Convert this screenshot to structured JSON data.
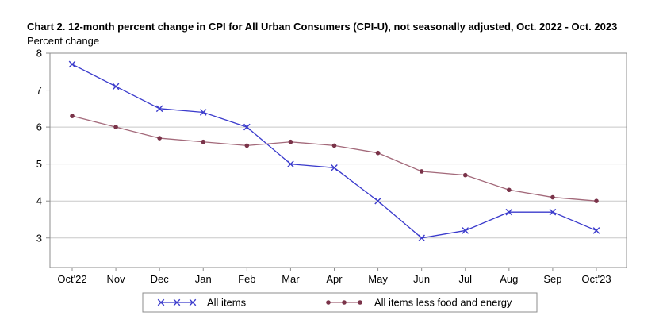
{
  "chart_data": {
    "type": "line",
    "title": "Chart 2. 12-month percent change in CPI for All Urban Consumers (CPI-U), not seasonally adjusted, Oct. 2022 - Oct. 2023",
    "ylabel": "Percent change",
    "xlabel": "",
    "categories": [
      "Oct'22",
      "Nov",
      "Dec",
      "Jan",
      "Feb",
      "Mar",
      "Apr",
      "May",
      "Jun",
      "Jul",
      "Aug",
      "Sep",
      "Oct'23"
    ],
    "ylim": [
      2.2,
      8
    ],
    "yticks": [
      3,
      4,
      5,
      6,
      7,
      8
    ],
    "grid": true,
    "legend": "bottom",
    "series": [
      {
        "name": "All items",
        "color": "#3b3bcc",
        "marker": "x",
        "values": [
          7.7,
          7.1,
          6.5,
          6.4,
          6.0,
          5.0,
          4.9,
          4.0,
          3.0,
          3.2,
          3.7,
          3.7,
          3.2
        ]
      },
      {
        "name": "All items less food and energy",
        "color": "#a3697a",
        "marker": "dot",
        "values": [
          6.3,
          6.0,
          5.7,
          5.6,
          5.5,
          5.6,
          5.5,
          5.3,
          4.8,
          4.7,
          4.3,
          4.1,
          4.0
        ]
      }
    ]
  }
}
